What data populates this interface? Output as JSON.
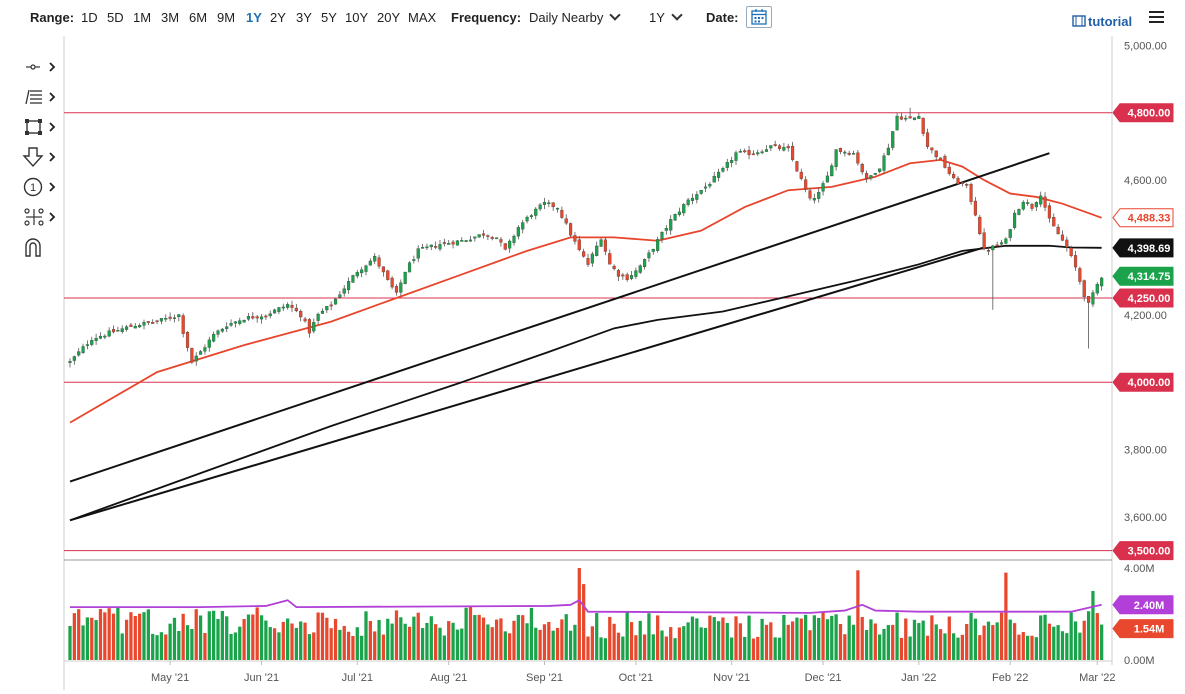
{
  "toolbar": {
    "range_label": "Range:",
    "ranges": [
      "1D",
      "5D",
      "1M",
      "3M",
      "6M",
      "9M",
      "1Y",
      "2Y",
      "3Y",
      "5Y",
      "10Y",
      "20Y",
      "MAX"
    ],
    "active_range": "1Y",
    "frequency_label": "Frequency:",
    "frequency_value": "Daily Nearby",
    "period_value": "1Y",
    "date_label": "Date:",
    "tutorial_label": "tutorial"
  },
  "icons": [
    "calendar-icon",
    "hamburger-menu-icon",
    "crosshair-tool-icon",
    "fibonacci-tool-icon",
    "rectangle-tool-icon",
    "arrow-tool-icon",
    "numbered-marker-icon",
    "pattern-tool-icon",
    "magnet-icon"
  ],
  "colors": {
    "up": "#1aa34a",
    "down": "#e8492e",
    "ma_red": "#e8452c",
    "ma_black": "#111111",
    "hline": "#d9304e",
    "volume_avg": "#b13fd8",
    "volume_avg_badge": "#b13fd8",
    "price_badge": "#1aa34a",
    "accent": "#1f6fb8"
  },
  "chart_data": {
    "type": "candlestick",
    "price_axis": {
      "range": [
        3490,
        5010
      ],
      "ticks": [
        {
          "value": 5000,
          "label": "5,000.00"
        },
        {
          "value": 4600,
          "label": "4,600.00"
        },
        {
          "value": 4200,
          "label": "4,200.00"
        },
        {
          "value": 3800,
          "label": "3,800.00"
        },
        {
          "value": 3600,
          "label": "3,600.00"
        }
      ]
    },
    "x_axis": {
      "labels": [
        {
          "day": 23,
          "label": "May '21"
        },
        {
          "day": 44,
          "label": "Jun '21"
        },
        {
          "day": 66,
          "label": "Jul '21"
        },
        {
          "day": 87,
          "label": "Aug '21"
        },
        {
          "day": 109,
          "label": "Sep '21"
        },
        {
          "day": 130,
          "label": "Oct '21"
        },
        {
          "day": 152,
          "label": "Nov '21"
        },
        {
          "day": 173,
          "label": "Dec '21"
        },
        {
          "day": 195,
          "label": "Jan '22"
        },
        {
          "day": 216,
          "label": "Feb '22"
        },
        {
          "day": 236,
          "label": "Mar '22"
        }
      ],
      "days": 238
    },
    "close_path": [
      [
        0,
        4060
      ],
      [
        5,
        4130
      ],
      [
        10,
        4150
      ],
      [
        15,
        4170
      ],
      [
        20,
        4180
      ],
      [
        25,
        4200
      ],
      [
        26,
        4150
      ],
      [
        28,
        4060
      ],
      [
        30,
        4090
      ],
      [
        33,
        4140
      ],
      [
        36,
        4170
      ],
      [
        40,
        4190
      ],
      [
        45,
        4200
      ],
      [
        50,
        4230
      ],
      [
        53,
        4200
      ],
      [
        55,
        4150
      ],
      [
        57,
        4200
      ],
      [
        60,
        4230
      ],
      [
        63,
        4280
      ],
      [
        66,
        4330
      ],
      [
        70,
        4370
      ],
      [
        73,
        4300
      ],
      [
        75,
        4260
      ],
      [
        77,
        4330
      ],
      [
        80,
        4390
      ],
      [
        85,
        4410
      ],
      [
        90,
        4420
      ],
      [
        95,
        4440
      ],
      [
        98,
        4430
      ],
      [
        100,
        4390
      ],
      [
        103,
        4460
      ],
      [
        106,
        4500
      ],
      [
        109,
        4530
      ],
      [
        112,
        4520
      ],
      [
        115,
        4440
      ],
      [
        117,
        4390
      ],
      [
        119,
        4350
      ],
      [
        122,
        4430
      ],
      [
        124,
        4350
      ],
      [
        126,
        4320
      ],
      [
        128,
        4310
      ],
      [
        130,
        4330
      ],
      [
        132,
        4360
      ],
      [
        135,
        4420
      ],
      [
        138,
        4480
      ],
      [
        142,
        4540
      ],
      [
        146,
        4580
      ],
      [
        150,
        4630
      ],
      [
        153,
        4680
      ],
      [
        157,
        4680
      ],
      [
        161,
        4700
      ],
      [
        165,
        4690
      ],
      [
        168,
        4600
      ],
      [
        170,
        4540
      ],
      [
        172,
        4560
      ],
      [
        174,
        4610
      ],
      [
        176,
        4690
      ],
      [
        180,
        4680
      ],
      [
        183,
        4600
      ],
      [
        186,
        4640
      ],
      [
        188,
        4700
      ],
      [
        190,
        4790
      ],
      [
        193,
        4780
      ],
      [
        195,
        4790
      ],
      [
        197,
        4700
      ],
      [
        200,
        4660
      ],
      [
        203,
        4600
      ],
      [
        206,
        4580
      ],
      [
        208,
        4500
      ],
      [
        210,
        4390
      ],
      [
        212,
        4400
      ],
      [
        215,
        4420
      ],
      [
        217,
        4500
      ],
      [
        219,
        4540
      ],
      [
        221,
        4520
      ],
      [
        223,
        4560
      ],
      [
        225,
        4480
      ],
      [
        227,
        4440
      ],
      [
        229,
        4400
      ],
      [
        231,
        4340
      ],
      [
        233,
        4260
      ],
      [
        234,
        4230
      ],
      [
        236,
        4290
      ],
      [
        237,
        4315
      ]
    ],
    "moving_averages": [
      {
        "color": "red",
        "points": [
          [
            0,
            3880
          ],
          [
            20,
            4030
          ],
          [
            40,
            4110
          ],
          [
            60,
            4180
          ],
          [
            75,
            4250
          ],
          [
            90,
            4320
          ],
          [
            105,
            4390
          ],
          [
            115,
            4430
          ],
          [
            125,
            4430
          ],
          [
            135,
            4420
          ],
          [
            145,
            4450
          ],
          [
            155,
            4520
          ],
          [
            165,
            4570
          ],
          [
            175,
            4580
          ],
          [
            185,
            4610
          ],
          [
            193,
            4650
          ],
          [
            200,
            4660
          ],
          [
            205,
            4640
          ],
          [
            210,
            4600
          ],
          [
            216,
            4560
          ],
          [
            222,
            4550
          ],
          [
            228,
            4530
          ],
          [
            237,
            4488
          ]
        ]
      },
      {
        "color": "black",
        "points": [
          [
            0,
            3590
          ],
          [
            30,
            3730
          ],
          [
            60,
            3870
          ],
          [
            90,
            4000
          ],
          [
            110,
            4090
          ],
          [
            125,
            4160
          ],
          [
            135,
            4185
          ],
          [
            150,
            4210
          ],
          [
            165,
            4255
          ],
          [
            180,
            4300
          ],
          [
            195,
            4350
          ],
          [
            205,
            4390
          ],
          [
            215,
            4405
          ],
          [
            225,
            4405
          ],
          [
            230,
            4400
          ],
          [
            237,
            4399
          ]
        ]
      }
    ],
    "trend_lines": [
      {
        "from": [
          0,
          3705
        ],
        "to": [
          225,
          4680
        ]
      },
      {
        "from": [
          0,
          3590
        ],
        "to": [
          210,
          4400
        ]
      }
    ],
    "horizontal_levels": [
      4800,
      4250,
      4000,
      3500
    ],
    "price_labels": [
      {
        "value": 4800,
        "label": "4,800.00",
        "kind": "level"
      },
      {
        "value": 4488.33,
        "label": "4,488.33",
        "kind": "ma_red"
      },
      {
        "value": 4398.69,
        "label": "4,398.69",
        "kind": "ma_black"
      },
      {
        "value": 4314.75,
        "label": "4,314.75",
        "kind": "price"
      },
      {
        "value": 4250,
        "label": "4,250.00",
        "kind": "level"
      },
      {
        "value": 4000,
        "label": "4,000.00",
        "kind": "level"
      },
      {
        "value": 3500,
        "label": "3,500.00",
        "kind": "level"
      }
    ],
    "volume": {
      "range": [
        0,
        4.0
      ],
      "ticks": [
        {
          "value": 4.0,
          "label": "4.00M"
        },
        {
          "value": 0,
          "label": "0.00M"
        }
      ],
      "average_label": {
        "value": 2.4,
        "label": "2.40M"
      },
      "last_label": {
        "value": 1.54,
        "label": "1.54M"
      },
      "average_path": [
        [
          0,
          2.3
        ],
        [
          30,
          2.3
        ],
        [
          45,
          2.35
        ],
        [
          50,
          2.6
        ],
        [
          52,
          2.3
        ],
        [
          110,
          2.35
        ],
        [
          115,
          2.4
        ],
        [
          117,
          2.6
        ],
        [
          119,
          2.1
        ],
        [
          170,
          2.05
        ],
        [
          178,
          2.15
        ],
        [
          182,
          2.4
        ],
        [
          185,
          2.15
        ],
        [
          195,
          2.1
        ],
        [
          215,
          2.1
        ],
        [
          230,
          2.1
        ],
        [
          237,
          2.4
        ]
      ],
      "spikes": [
        [
          117,
          4.0
        ],
        [
          118,
          3.3
        ],
        [
          181,
          3.9
        ],
        [
          215,
          3.8
        ],
        [
          235,
          3.0
        ]
      ]
    }
  }
}
